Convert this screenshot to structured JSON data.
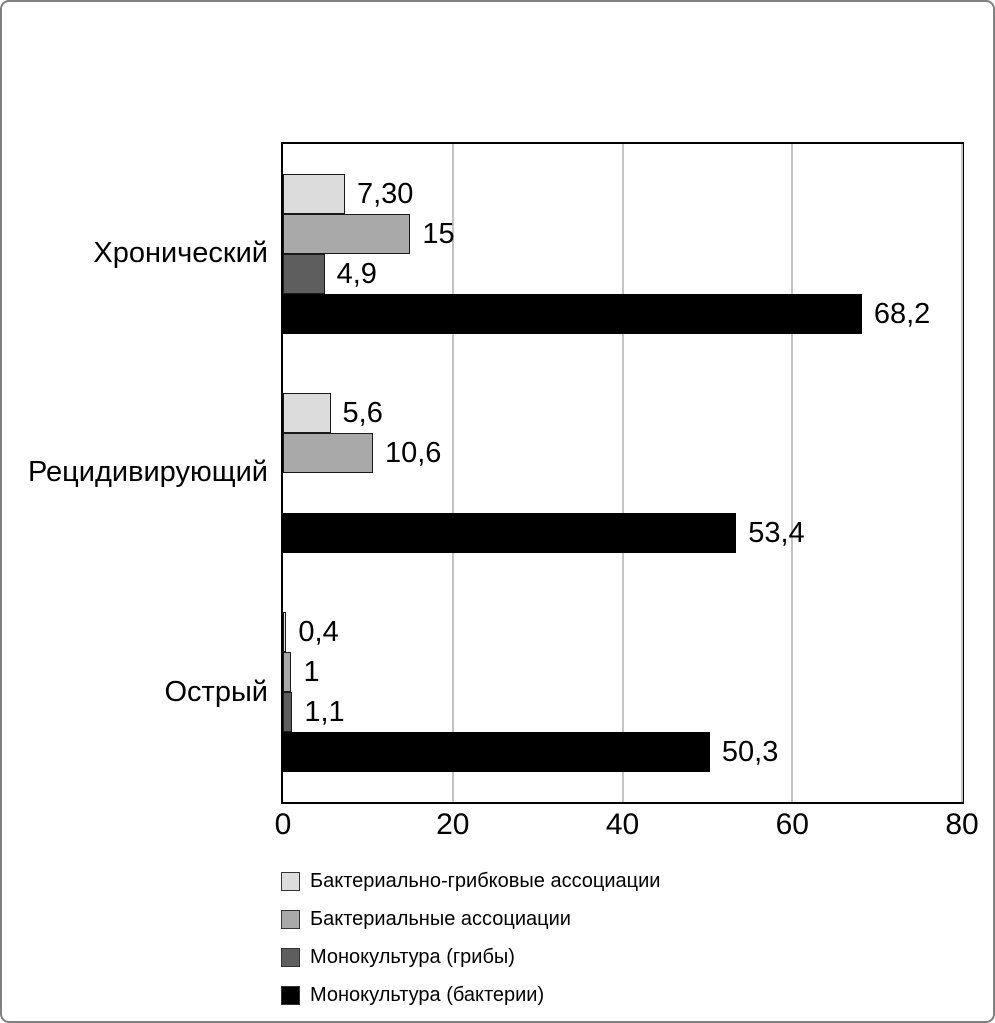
{
  "chart_data": {
    "type": "bar",
    "orientation": "horizontal",
    "title": "",
    "xlabel": "",
    "ylabel": "",
    "categories": [
      "Хронический",
      "Рецидивирующий",
      "Острый"
    ],
    "series": [
      {
        "name": "Бактериально-грибковые ассоциации",
        "color": "#dcdcdc",
        "values": [
          7.3,
          5.6,
          0.4
        ],
        "value_labels": [
          "7,30",
          "5,6",
          "0,4"
        ]
      },
      {
        "name": "Бактериальные ассоциации",
        "color": "#a9a9a9",
        "values": [
          15,
          10.6,
          1
        ],
        "value_labels": [
          "15",
          "10,6",
          "1"
        ]
      },
      {
        "name": "Монокультура (грибы)",
        "color": "#5e5e5e",
        "values": [
          4.9,
          null,
          1.1
        ],
        "value_labels": [
          "4,9",
          null,
          "1,1"
        ]
      },
      {
        "name": "Монокультура (бактерии)",
        "color": "#000000",
        "values": [
          68.2,
          53.4,
          50.3
        ],
        "value_labels": [
          "68,2",
          "53,4",
          "50,3"
        ]
      }
    ],
    "x_axis": {
      "min": 0,
      "max": 80,
      "ticks": [
        0,
        20,
        40,
        60,
        80
      ],
      "tick_labels": [
        "0",
        "20",
        "40",
        "60",
        "80"
      ]
    },
    "grid": true,
    "legend_position": "bottom",
    "colors": {
      "plot_border": "#000000",
      "gridline": "#c4c4c4",
      "frame_border": "#808080",
      "background": "#ffffff",
      "text": "#000000"
    }
  }
}
